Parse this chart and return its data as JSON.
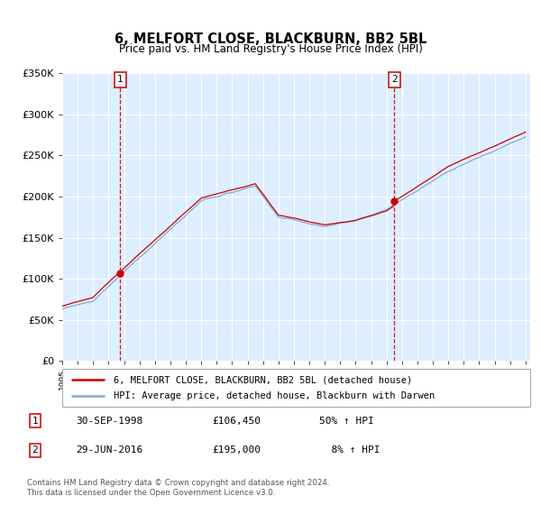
{
  "title": "6, MELFORT CLOSE, BLACKBURN, BB2 5BL",
  "subtitle": "Price paid vs. HM Land Registry's House Price Index (HPI)",
  "y_min": 0,
  "y_max": 350000,
  "y_ticks": [
    0,
    50000,
    100000,
    150000,
    200000,
    250000,
    300000,
    350000
  ],
  "y_tick_labels": [
    "£0",
    "£50K",
    "£100K",
    "£150K",
    "£200K",
    "£250K",
    "£300K",
    "£350K"
  ],
  "sale1_year": 1998.75,
  "sale1_price": 106450,
  "sale2_year": 2016.5,
  "sale2_price": 195000,
  "legend_line1": "6, MELFORT CLOSE, BLACKBURN, BB2 5BL (detached house)",
  "legend_line2": "HPI: Average price, detached house, Blackburn with Darwen",
  "footer": "Contains HM Land Registry data © Crown copyright and database right 2024.\nThis data is licensed under the Open Government Licence v3.0.",
  "bg_color": "#ddeeff",
  "line_red": "#cc0000",
  "line_blue": "#88aacc",
  "grid_color": "#ffffff",
  "sale1_date_str": "30-SEP-1998",
  "sale1_price_str": "£106,450",
  "sale1_pct_str": "50% ↑ HPI",
  "sale2_date_str": "29-JUN-2016",
  "sale2_price_str": "£195,000",
  "sale2_pct_str": "  8% ↑ HPI"
}
